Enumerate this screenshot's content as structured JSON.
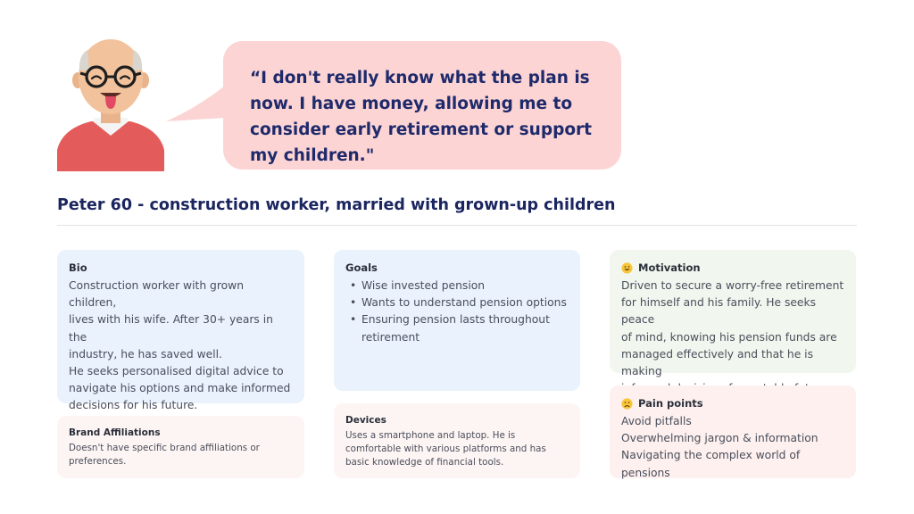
{
  "quote": {
    "lines": [
      "“I don't really know what the plan is now.",
      "I have money, allowing me to consider",
      "early retirement or support my children.\""
    ]
  },
  "persona": {
    "title": "Peter 60 - construction worker, married with grown-up children"
  },
  "cards": {
    "bio": {
      "heading": "Bio",
      "lines": [
        "Construction worker with grown children,",
        "lives with his wife. After 30+ years in the",
        "industry, he has saved well.",
        "He seeks personalised digital advice to",
        "navigate his options and make informed",
        "decisions for his future."
      ]
    },
    "brand": {
      "heading": "Brand Affiliations",
      "lines": [
        "Doesn't have specific brand affiliations or",
        "preferences."
      ]
    },
    "goals": {
      "heading": "Goals",
      "items": [
        "Wise invested pension",
        "Wants to understand pension options",
        "Ensuring pension lasts throughout",
        "retirement"
      ]
    },
    "devices": {
      "heading": "Devices",
      "lines": [
        "Uses a smartphone and laptop. He is",
        "comfortable with various platforms and has",
        "basic knowledge of financial tools."
      ]
    },
    "motivation": {
      "heading": "Motivation",
      "icon": "grinning-face-icon",
      "lines": [
        "Driven to secure a worry-free retirement",
        "for himself and his family. He seeks peace",
        "of mind, knowing his pension funds are",
        "managed effectively and that he is making",
        "informed decisions for a stable future."
      ]
    },
    "pain": {
      "heading": "Pain points",
      "icon": "frowning-face-icon",
      "lines": [
        "Avoid pitfalls",
        "Overwhelming jargon & information",
        "Navigating the complex world of pensions"
      ]
    }
  },
  "colors": {
    "bubble": "#fcd4d4",
    "title": "#1b255f",
    "card_blue": "#eaf2fd",
    "card_peach": "#fdf5f3",
    "card_green": "#f1f7ee",
    "card_pink": "#fdf0ee",
    "shirt": "#e45b5b"
  }
}
